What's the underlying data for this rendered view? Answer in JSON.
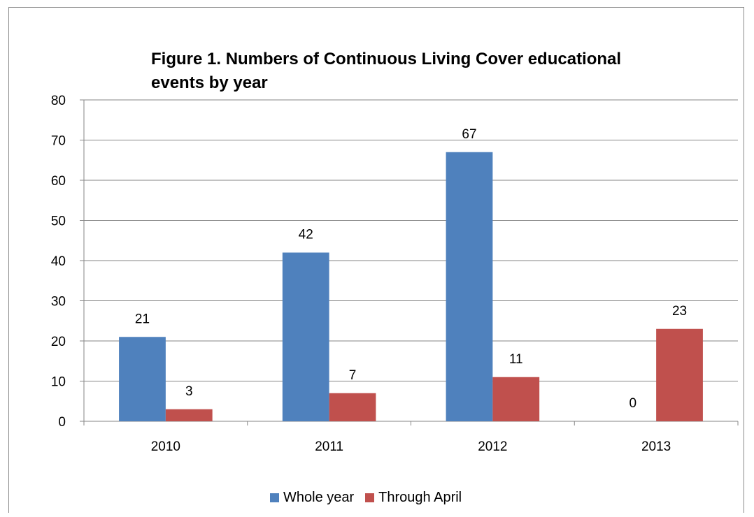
{
  "chart_data": {
    "type": "bar",
    "title": "Figure 1.  Numbers of Continuous Living Cover educational events by year",
    "title_lines": [
      "Figure 1.  Numbers of Continuous Living Cover educational",
      "events by year"
    ],
    "categories": [
      "2010",
      "2011",
      "2012",
      "2013"
    ],
    "series": [
      {
        "name": "Whole year",
        "values": [
          21,
          42,
          67,
          0
        ],
        "color": "#4F81BD"
      },
      {
        "name": "Through April",
        "values": [
          3,
          7,
          11,
          23
        ],
        "color": "#C0504D"
      }
    ],
    "ylim": [
      0,
      80
    ],
    "yticks": [
      "0",
      "10",
      "20",
      "30",
      "40",
      "50",
      "60",
      "70",
      "80"
    ],
    "grid": true,
    "data_labels": true,
    "legend_position": "bottom",
    "xlabel": "",
    "ylabel": ""
  }
}
